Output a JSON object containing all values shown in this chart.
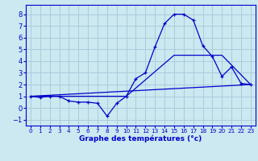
{
  "xlabel": "Graphe des températures (°c)",
  "background_color": "#cce8f0",
  "grid_color": "#aaccdd",
  "line_color": "#0000cc",
  "xlim": [
    -0.5,
    23.5
  ],
  "ylim": [
    -1.5,
    8.8
  ],
  "yticks": [
    -1,
    0,
    1,
    2,
    3,
    4,
    5,
    6,
    7,
    8
  ],
  "xticks": [
    0,
    1,
    2,
    3,
    4,
    5,
    6,
    7,
    8,
    9,
    10,
    11,
    12,
    13,
    14,
    15,
    16,
    17,
    18,
    19,
    20,
    21,
    22,
    23
  ],
  "line1_x": [
    0,
    1,
    2,
    3,
    4,
    5,
    6,
    7,
    8,
    9,
    10,
    11,
    12,
    13,
    14,
    15,
    16,
    17,
    18,
    19,
    20,
    21,
    22,
    23
  ],
  "line1_y": [
    1.0,
    0.9,
    1.0,
    1.0,
    0.6,
    0.5,
    0.5,
    0.4,
    -0.7,
    0.4,
    1.0,
    2.5,
    3.0,
    5.2,
    7.2,
    8.0,
    8.0,
    7.5,
    5.3,
    4.4,
    2.7,
    3.5,
    2.1,
    2.0
  ],
  "line2_x": [
    0,
    23
  ],
  "line2_y": [
    1.0,
    2.0
  ],
  "line3_x": [
    0,
    10,
    15,
    20,
    23
  ],
  "line3_y": [
    1.0,
    1.0,
    4.5,
    4.5,
    2.0
  ]
}
